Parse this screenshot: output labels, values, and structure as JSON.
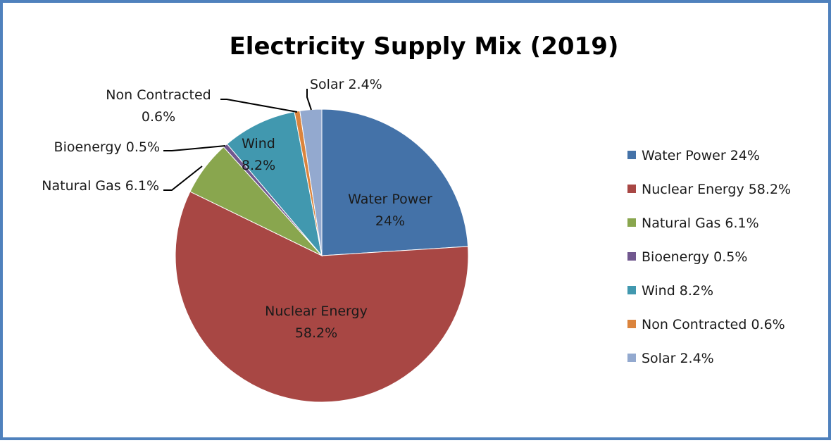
{
  "chart_data": {
    "type": "pie",
    "title": "Electricity Supply Mix (2019)",
    "legend_position": "right",
    "slices": [
      {
        "category": "Water Power",
        "value": 24,
        "label_lines": [
          "Water Power",
          "24%"
        ],
        "legend": "Water Power 24%",
        "color": "#4472a8"
      },
      {
        "category": "Nuclear Energy",
        "value": 58.2,
        "label_lines": [
          "Nuclear Energy",
          "58.2%"
        ],
        "legend": "Nuclear Energy 58.2%",
        "color": "#a84744"
      },
      {
        "category": "Natural Gas",
        "value": 6.1,
        "label_lines": [
          "Natural Gas 6.1%"
        ],
        "legend": "Natural Gas 6.1%",
        "color": "#89a64e"
      },
      {
        "category": "Bioenergy",
        "value": 0.5,
        "label_lines": [
          "Bioenergy 0.5%"
        ],
        "legend": "Bioenergy 0.5%",
        "color": "#71588f"
      },
      {
        "category": "Wind",
        "value": 8.2,
        "label_lines": [
          "Wind",
          "8.2%"
        ],
        "legend": "Wind 8.2%",
        "color": "#4198af"
      },
      {
        "category": "Non Contracted",
        "value": 0.6,
        "label_lines": [
          "Non Contracted",
          "0.6%"
        ],
        "legend": "Non Contracted 0.6%",
        "color": "#db843d"
      },
      {
        "category": "Solar",
        "value": 2.4,
        "label_lines": [
          "Solar 2.4%"
        ],
        "legend": "Solar 2.4%",
        "color": "#93a9cf"
      }
    ]
  }
}
